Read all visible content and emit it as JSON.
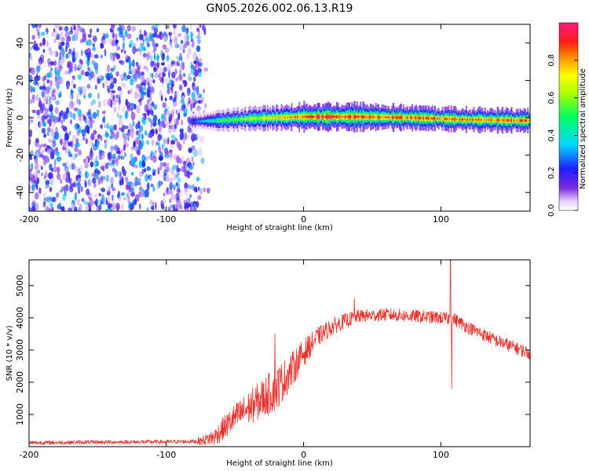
{
  "title": "GN05.2026.002.06.13.R19",
  "chart_data": [
    {
      "type": "heatmap",
      "name": "spectrogram",
      "xlabel": "Height of straight line (km)",
      "ylabel": "Frequency (Hz)",
      "xlim": [
        -200,
        165
      ],
      "ylim": [
        -50,
        50
      ],
      "x_ticks": [
        -200,
        -100,
        0,
        100
      ],
      "y_ticks": [
        -40,
        -20,
        0,
        20,
        40
      ],
      "noise_region_x": [
        -200,
        -75
      ],
      "noise_amplitude_range": [
        0.05,
        0.35
      ],
      "signal_band": {
        "x_start": -82,
        "x_end": 165,
        "frequency_hz": [
          -2,
          -1.5,
          -0.5,
          0,
          0.5,
          0.5,
          0.5,
          0,
          -1,
          -1.5
        ],
        "x_at": [
          -80,
          -60,
          -40,
          -20,
          0,
          20,
          40,
          80,
          120,
          160
        ],
        "amplitude": [
          0.25,
          0.55,
          0.65,
          0.75,
          0.9,
          0.95,
          0.92,
          0.9,
          0.88,
          0.9
        ],
        "halo_halfwidth_hz": [
          2,
          2.5,
          3,
          3,
          3.5,
          3.5,
          3.5,
          3,
          3,
          3
        ]
      },
      "colorbar": {
        "label": "Normalized spectral amplitude",
        "range": [
          0,
          1
        ],
        "ticks": [
          0.0,
          0.2,
          0.4,
          0.6,
          0.8
        ],
        "tick_labels": [
          "0.0",
          "0.2",
          "0.4",
          "0.6",
          "0.8"
        ]
      }
    },
    {
      "type": "line",
      "name": "snr",
      "xlabel": "Height of straight line (km)",
      "ylabel": "SNR (10 * v/v)",
      "xlim": [
        -200,
        165
      ],
      "ylim": [
        0,
        5800
      ],
      "x_ticks": [
        -200,
        -100,
        0,
        100
      ],
      "y_ticks": [
        1000,
        2000,
        3000,
        4000,
        5000
      ],
      "color": "#e8302c",
      "baseline_points": [
        {
          "x": -200,
          "y": 120
        },
        {
          "x": -150,
          "y": 140
        },
        {
          "x": -100,
          "y": 150
        },
        {
          "x": -75,
          "y": 170
        },
        {
          "x": -65,
          "y": 300
        },
        {
          "x": -50,
          "y": 900
        },
        {
          "x": -30,
          "y": 1500
        },
        {
          "x": -20,
          "y": 1800
        },
        {
          "x": -10,
          "y": 2300
        },
        {
          "x": 0,
          "y": 2900
        },
        {
          "x": 10,
          "y": 3400
        },
        {
          "x": 20,
          "y": 3700
        },
        {
          "x": 30,
          "y": 3900
        },
        {
          "x": 40,
          "y": 4050
        },
        {
          "x": 60,
          "y": 4100
        },
        {
          "x": 80,
          "y": 4050
        },
        {
          "x": 100,
          "y": 4000
        },
        {
          "x": 110,
          "y": 3950
        },
        {
          "x": 120,
          "y": 3700
        },
        {
          "x": 140,
          "y": 3300
        },
        {
          "x": 165,
          "y": 2900
        }
      ],
      "noise_amplitude": [
        {
          "x": -200,
          "a": 60
        },
        {
          "x": -80,
          "a": 60
        },
        {
          "x": -60,
          "a": 350
        },
        {
          "x": -20,
          "a": 700
        },
        {
          "x": 10,
          "a": 300
        },
        {
          "x": 40,
          "a": 200
        },
        {
          "x": 165,
          "a": 200
        }
      ],
      "spikes": [
        {
          "x": -21,
          "y": 3500
        },
        {
          "x": 37,
          "y": 4600
        },
        {
          "x": 107,
          "y": 5800
        },
        {
          "x": 108,
          "y": 1800
        }
      ]
    }
  ]
}
